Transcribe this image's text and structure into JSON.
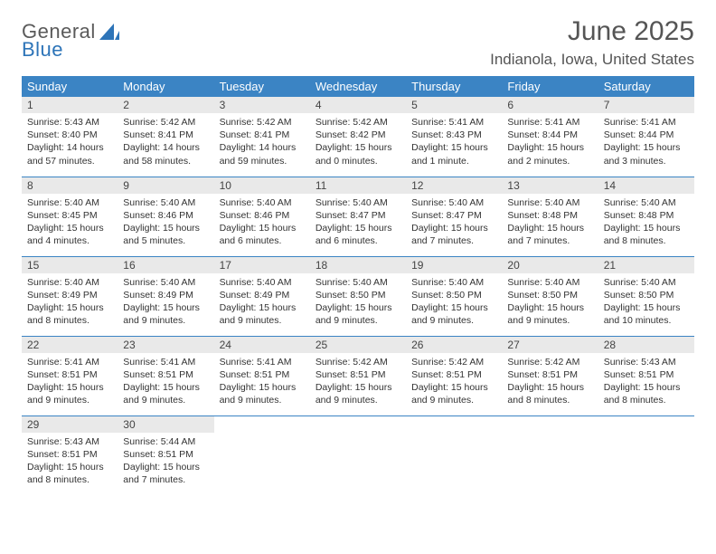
{
  "logo": {
    "line1": "General",
    "line2": "Blue"
  },
  "title": "June 2025",
  "location": "Indianola, Iowa, United States",
  "colors": {
    "header_bg": "#3b84c4",
    "header_text": "#ffffff",
    "daynum_bg": "#e9e9e9",
    "rule": "#3b84c4",
    "logo_blue": "#2d74b8",
    "logo_gray": "#5a5a5a"
  },
  "weekdays": [
    "Sunday",
    "Monday",
    "Tuesday",
    "Wednesday",
    "Thursday",
    "Friday",
    "Saturday"
  ],
  "days": [
    {
      "n": 1,
      "sr": "5:43 AM",
      "ss": "8:40 PM",
      "dl": "14 hours and 57 minutes."
    },
    {
      "n": 2,
      "sr": "5:42 AM",
      "ss": "8:41 PM",
      "dl": "14 hours and 58 minutes."
    },
    {
      "n": 3,
      "sr": "5:42 AM",
      "ss": "8:41 PM",
      "dl": "14 hours and 59 minutes."
    },
    {
      "n": 4,
      "sr": "5:42 AM",
      "ss": "8:42 PM",
      "dl": "15 hours and 0 minutes."
    },
    {
      "n": 5,
      "sr": "5:41 AM",
      "ss": "8:43 PM",
      "dl": "15 hours and 1 minute."
    },
    {
      "n": 6,
      "sr": "5:41 AM",
      "ss": "8:44 PM",
      "dl": "15 hours and 2 minutes."
    },
    {
      "n": 7,
      "sr": "5:41 AM",
      "ss": "8:44 PM",
      "dl": "15 hours and 3 minutes."
    },
    {
      "n": 8,
      "sr": "5:40 AM",
      "ss": "8:45 PM",
      "dl": "15 hours and 4 minutes."
    },
    {
      "n": 9,
      "sr": "5:40 AM",
      "ss": "8:46 PM",
      "dl": "15 hours and 5 minutes."
    },
    {
      "n": 10,
      "sr": "5:40 AM",
      "ss": "8:46 PM",
      "dl": "15 hours and 6 minutes."
    },
    {
      "n": 11,
      "sr": "5:40 AM",
      "ss": "8:47 PM",
      "dl": "15 hours and 6 minutes."
    },
    {
      "n": 12,
      "sr": "5:40 AM",
      "ss": "8:47 PM",
      "dl": "15 hours and 7 minutes."
    },
    {
      "n": 13,
      "sr": "5:40 AM",
      "ss": "8:48 PM",
      "dl": "15 hours and 7 minutes."
    },
    {
      "n": 14,
      "sr": "5:40 AM",
      "ss": "8:48 PM",
      "dl": "15 hours and 8 minutes."
    },
    {
      "n": 15,
      "sr": "5:40 AM",
      "ss": "8:49 PM",
      "dl": "15 hours and 8 minutes."
    },
    {
      "n": 16,
      "sr": "5:40 AM",
      "ss": "8:49 PM",
      "dl": "15 hours and 9 minutes."
    },
    {
      "n": 17,
      "sr": "5:40 AM",
      "ss": "8:49 PM",
      "dl": "15 hours and 9 minutes."
    },
    {
      "n": 18,
      "sr": "5:40 AM",
      "ss": "8:50 PM",
      "dl": "15 hours and 9 minutes."
    },
    {
      "n": 19,
      "sr": "5:40 AM",
      "ss": "8:50 PM",
      "dl": "15 hours and 9 minutes."
    },
    {
      "n": 20,
      "sr": "5:40 AM",
      "ss": "8:50 PM",
      "dl": "15 hours and 9 minutes."
    },
    {
      "n": 21,
      "sr": "5:40 AM",
      "ss": "8:50 PM",
      "dl": "15 hours and 10 minutes."
    },
    {
      "n": 22,
      "sr": "5:41 AM",
      "ss": "8:51 PM",
      "dl": "15 hours and 9 minutes."
    },
    {
      "n": 23,
      "sr": "5:41 AM",
      "ss": "8:51 PM",
      "dl": "15 hours and 9 minutes."
    },
    {
      "n": 24,
      "sr": "5:41 AM",
      "ss": "8:51 PM",
      "dl": "15 hours and 9 minutes."
    },
    {
      "n": 25,
      "sr": "5:42 AM",
      "ss": "8:51 PM",
      "dl": "15 hours and 9 minutes."
    },
    {
      "n": 26,
      "sr": "5:42 AM",
      "ss": "8:51 PM",
      "dl": "15 hours and 9 minutes."
    },
    {
      "n": 27,
      "sr": "5:42 AM",
      "ss": "8:51 PM",
      "dl": "15 hours and 8 minutes."
    },
    {
      "n": 28,
      "sr": "5:43 AM",
      "ss": "8:51 PM",
      "dl": "15 hours and 8 minutes."
    },
    {
      "n": 29,
      "sr": "5:43 AM",
      "ss": "8:51 PM",
      "dl": "15 hours and 8 minutes."
    },
    {
      "n": 30,
      "sr": "5:44 AM",
      "ss": "8:51 PM",
      "dl": "15 hours and 7 minutes."
    }
  ],
  "labels": {
    "sunrise": "Sunrise:",
    "sunset": "Sunset:",
    "daylight": "Daylight:"
  }
}
